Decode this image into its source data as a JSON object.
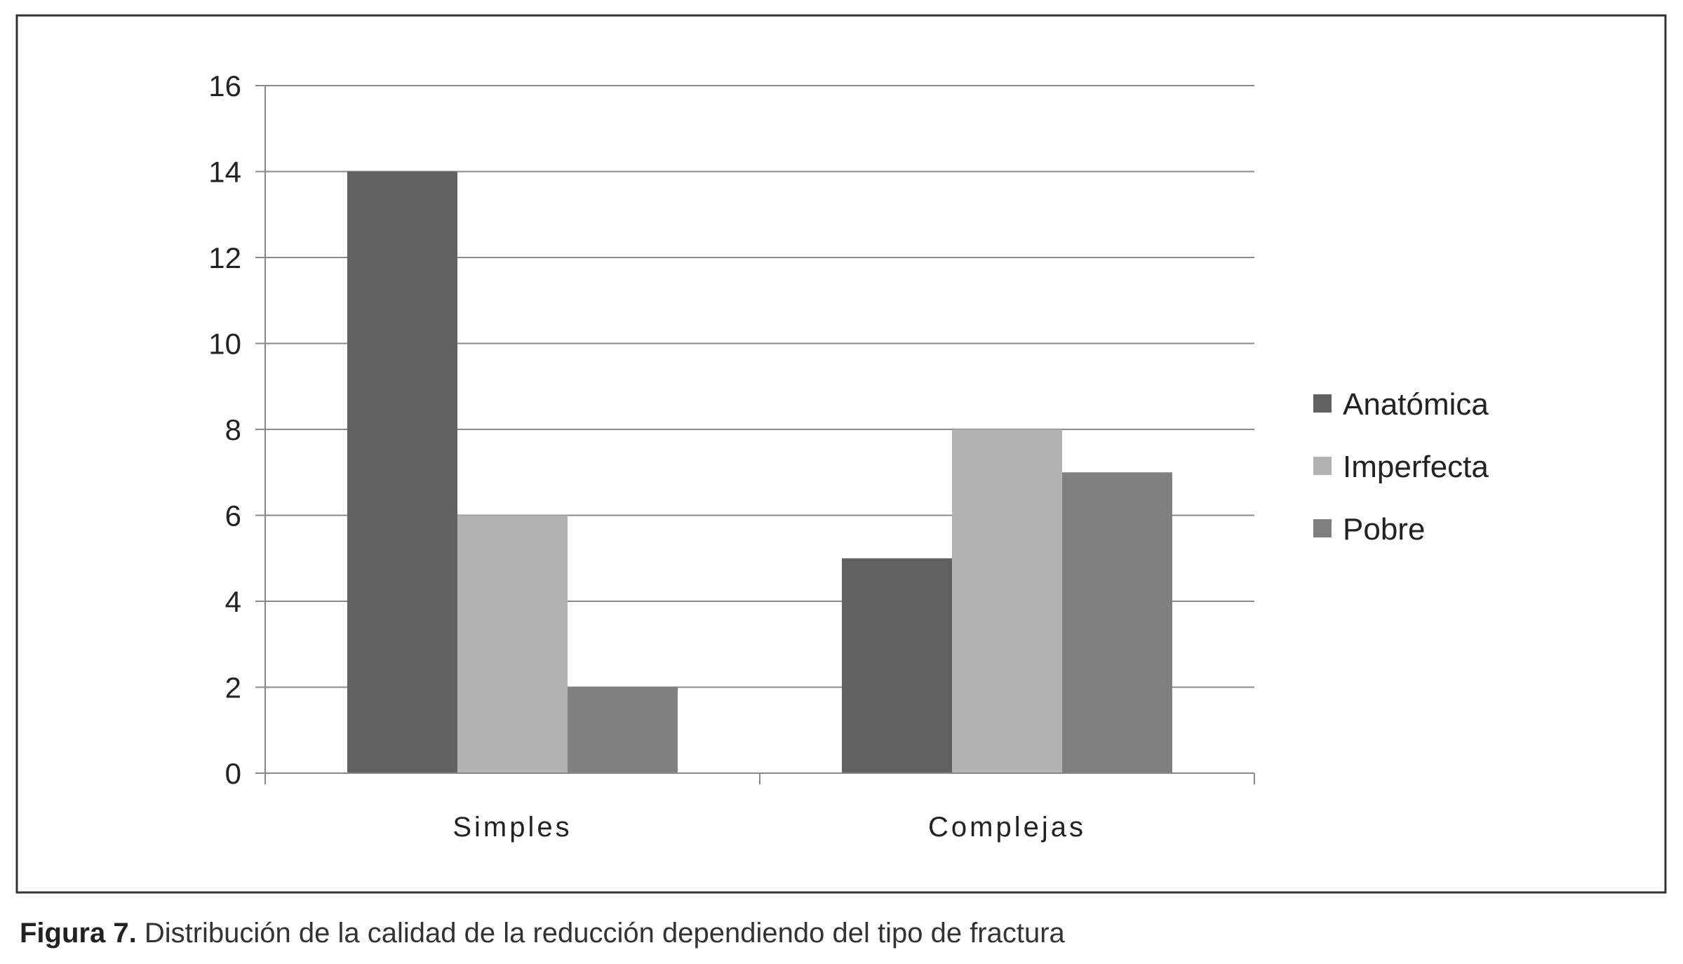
{
  "chart_data": {
    "type": "bar",
    "categories": [
      "Simples",
      "Complejas"
    ],
    "series": [
      {
        "name": "Anatómica",
        "values": [
          14,
          5
        ],
        "color": "#606060"
      },
      {
        "name": "Imperfecta",
        "values": [
          6,
          8
        ],
        "color": "#b3b3b3"
      },
      {
        "name": "Pobre",
        "values": [
          2,
          7
        ],
        "color": "#808080"
      }
    ],
    "title": "",
    "xlabel": "",
    "ylabel": "",
    "ylim": [
      0,
      16
    ],
    "yticks": [
      "0",
      "2",
      "4",
      "6",
      "8",
      "10",
      "12",
      "14",
      "16"
    ],
    "grid": true,
    "legend": "right",
    "colors": {
      "frame": "#333333",
      "grid": "#888888",
      "axis": "#888888",
      "text": "#222222"
    }
  },
  "caption": {
    "label": "Figura 7.",
    "text": "Distribución de la calidad de la reducción dependiendo del tipo de fractura"
  }
}
